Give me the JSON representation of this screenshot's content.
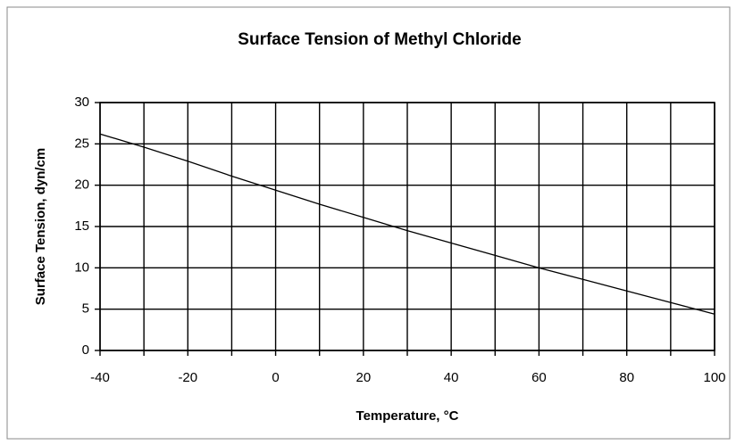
{
  "chart_data": {
    "type": "line",
    "title": "Surface Tension of Methyl Chloride",
    "x_label": "Temperature, °C",
    "y_label": "Surface Tension, dyn/cm",
    "x": [
      -40,
      -30,
      -20,
      -10,
      0,
      10,
      20,
      30,
      40,
      50,
      60,
      70,
      80,
      90,
      100
    ],
    "series": [
      {
        "name": "Surface Tension",
        "color": "#000000",
        "values": [
          26.2,
          24.6,
          22.9,
          21.1,
          19.4,
          17.7,
          16.1,
          14.5,
          13.0,
          11.5,
          10.0,
          8.6,
          7.2,
          5.8,
          4.4
        ]
      }
    ],
    "xlim": [
      -40,
      100
    ],
    "xticks": [
      -40,
      -20,
      0,
      20,
      40,
      60,
      80,
      100
    ],
    "xminorticks": [
      -30,
      -10,
      10,
      30,
      50,
      70,
      90
    ],
    "ylim": [
      0,
      30
    ],
    "yticks": [
      0,
      5,
      10,
      15,
      20,
      25,
      30
    ],
    "grid": true
  }
}
